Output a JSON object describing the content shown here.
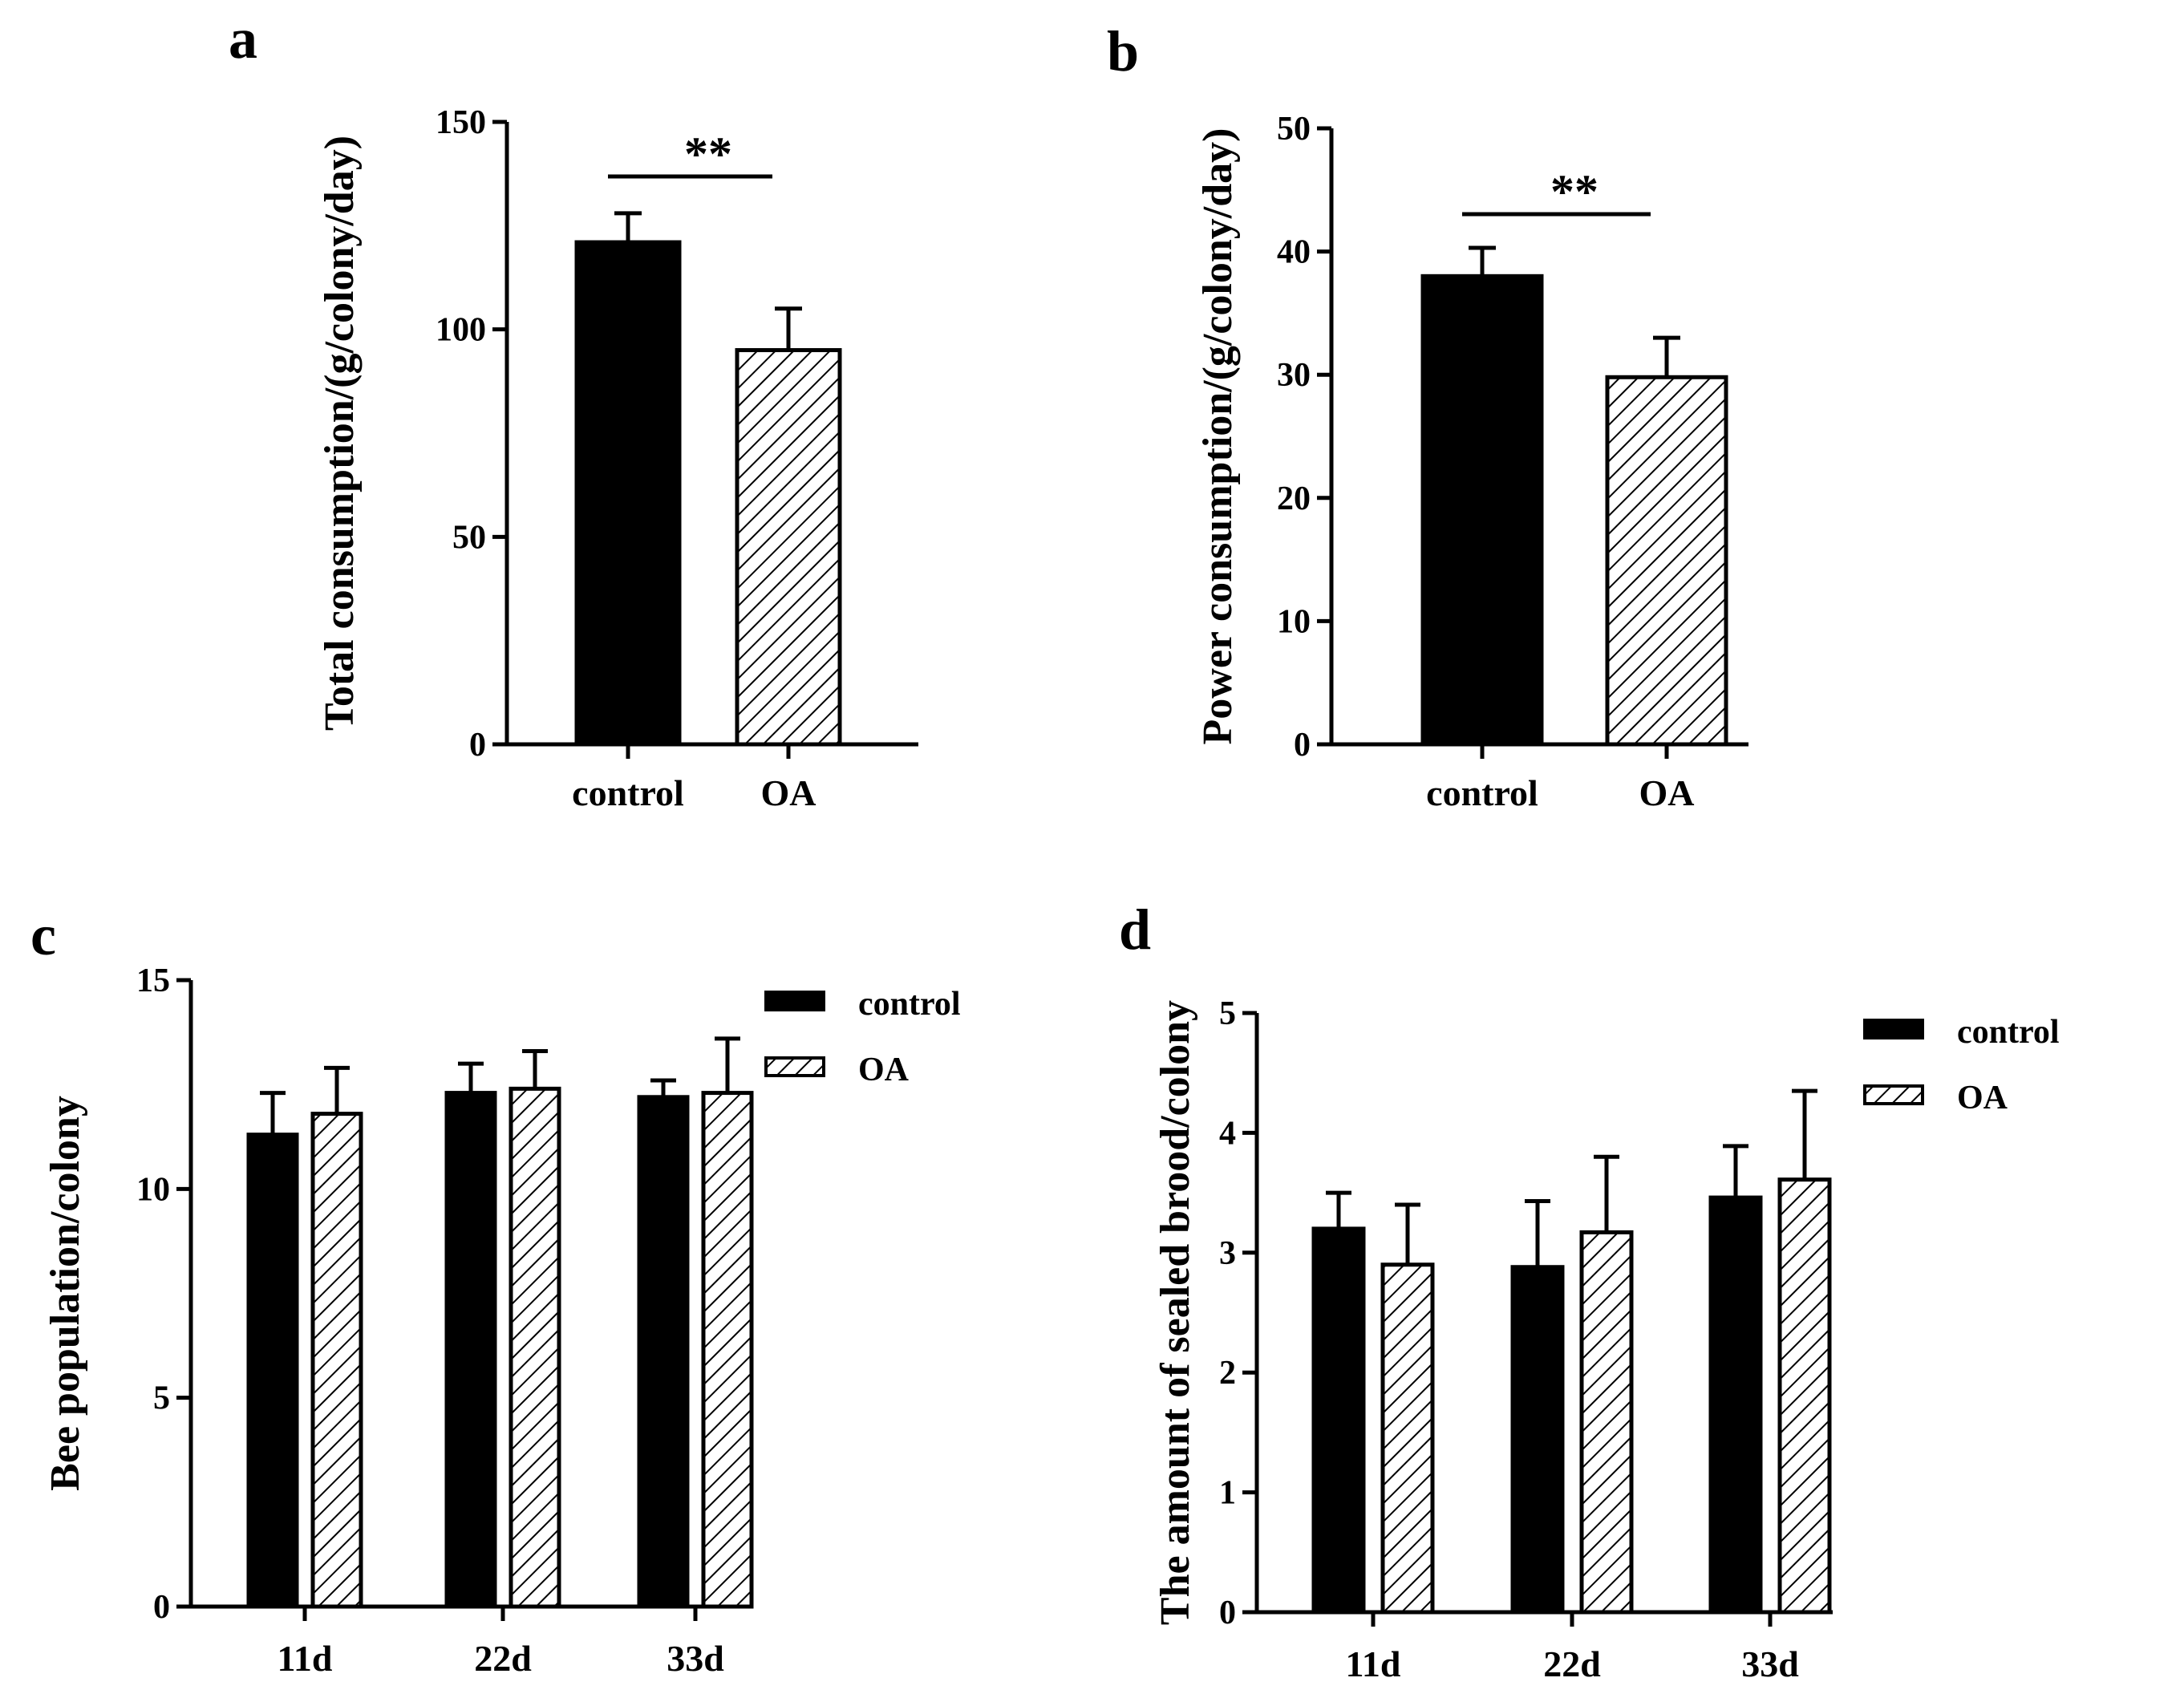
{
  "colors": {
    "ink": "#000000",
    "background": "#ffffff",
    "control_fill": "#000000",
    "oa_fill": "hatched"
  },
  "legend": {
    "control": "control",
    "OA": "OA"
  },
  "chart_data": [
    {
      "panel": "a",
      "type": "bar",
      "ylabel": "Total consumption/(g/colony/day)",
      "ylim": [
        0,
        150
      ],
      "yticks": [
        0,
        50,
        100,
        150
      ],
      "categories": [
        "control",
        "OA"
      ],
      "values": [
        121,
        95
      ],
      "errors": [
        7,
        10
      ],
      "patterns": [
        "solid",
        "hatch"
      ],
      "significance": "**",
      "legend": null
    },
    {
      "panel": "b",
      "type": "bar",
      "ylabel": "Power consumption/(g/colony/day)",
      "ylim": [
        0,
        50
      ],
      "yticks": [
        0,
        10,
        20,
        30,
        40,
        50
      ],
      "categories": [
        "control",
        "OA"
      ],
      "values": [
        38,
        29.8
      ],
      "errors": [
        2.3,
        3.2
      ],
      "patterns": [
        "solid",
        "hatch"
      ],
      "significance": "**",
      "legend": null
    },
    {
      "panel": "c",
      "type": "bar",
      "ylabel": "Bee population/colony",
      "ylim": [
        0,
        15
      ],
      "yticks": [
        0,
        5,
        10,
        15
      ],
      "categories": [
        "11d",
        "22d",
        "33d"
      ],
      "series": [
        {
          "name": "control",
          "values": [
            11.3,
            12.3,
            12.2
          ],
          "errors": [
            1.0,
            0.7,
            0.4
          ]
        },
        {
          "name": "OA",
          "values": [
            11.8,
            12.4,
            12.3
          ],
          "errors": [
            1.1,
            0.9,
            1.3
          ]
        }
      ],
      "legend": "top-right"
    },
    {
      "panel": "d",
      "type": "bar",
      "ylabel": "The amount of sealed brood/colony",
      "ylim": [
        0,
        5
      ],
      "yticks": [
        0,
        1,
        2,
        3,
        4,
        5
      ],
      "categories": [
        "11d",
        "22d",
        "33d"
      ],
      "series": [
        {
          "name": "control",
          "values": [
            3.2,
            2.88,
            3.46
          ],
          "errors": [
            0.3,
            0.55,
            0.43
          ]
        },
        {
          "name": "OA",
          "values": [
            2.9,
            3.17,
            3.61
          ],
          "errors": [
            0.5,
            0.63,
            0.74
          ]
        }
      ],
      "legend": "top-right"
    }
  ]
}
